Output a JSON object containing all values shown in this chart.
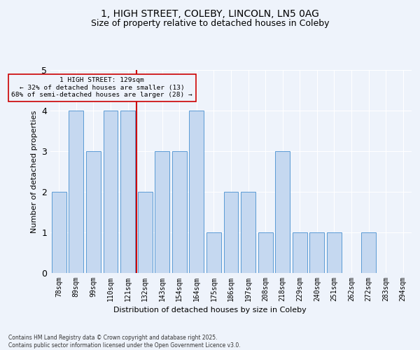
{
  "title_line1": "1, HIGH STREET, COLEBY, LINCOLN, LN5 0AG",
  "title_line2": "Size of property relative to detached houses in Coleby",
  "xlabel": "Distribution of detached houses by size in Coleby",
  "ylabel": "Number of detached properties",
  "categories": [
    "78sqm",
    "89sqm",
    "99sqm",
    "110sqm",
    "121sqm",
    "132sqm",
    "143sqm",
    "154sqm",
    "164sqm",
    "175sqm",
    "186sqm",
    "197sqm",
    "208sqm",
    "218sqm",
    "229sqm",
    "240sqm",
    "251sqm",
    "262sqm",
    "272sqm",
    "283sqm",
    "294sqm"
  ],
  "values": [
    2,
    4,
    3,
    4,
    4,
    2,
    3,
    3,
    4,
    1,
    2,
    2,
    1,
    3,
    1,
    1,
    1,
    0,
    1,
    0,
    0
  ],
  "bar_color": "#c5d8f0",
  "bar_edge_color": "#5b9bd5",
  "marker_index": 5,
  "marker_color": "#cc0000",
  "ylim": [
    0,
    5
  ],
  "yticks": [
    0,
    1,
    2,
    3,
    4,
    5
  ],
  "annotation_title": "1 HIGH STREET: 129sqm",
  "annotation_line2": "← 32% of detached houses are smaller (13)",
  "annotation_line3": "68% of semi-detached houses are larger (28) →",
  "annotation_box_color": "#cc0000",
  "background_color": "#eef3fb",
  "footer_line1": "Contains HM Land Registry data © Crown copyright and database right 2025.",
  "footer_line2": "Contains public sector information licensed under the Open Government Licence v3.0."
}
